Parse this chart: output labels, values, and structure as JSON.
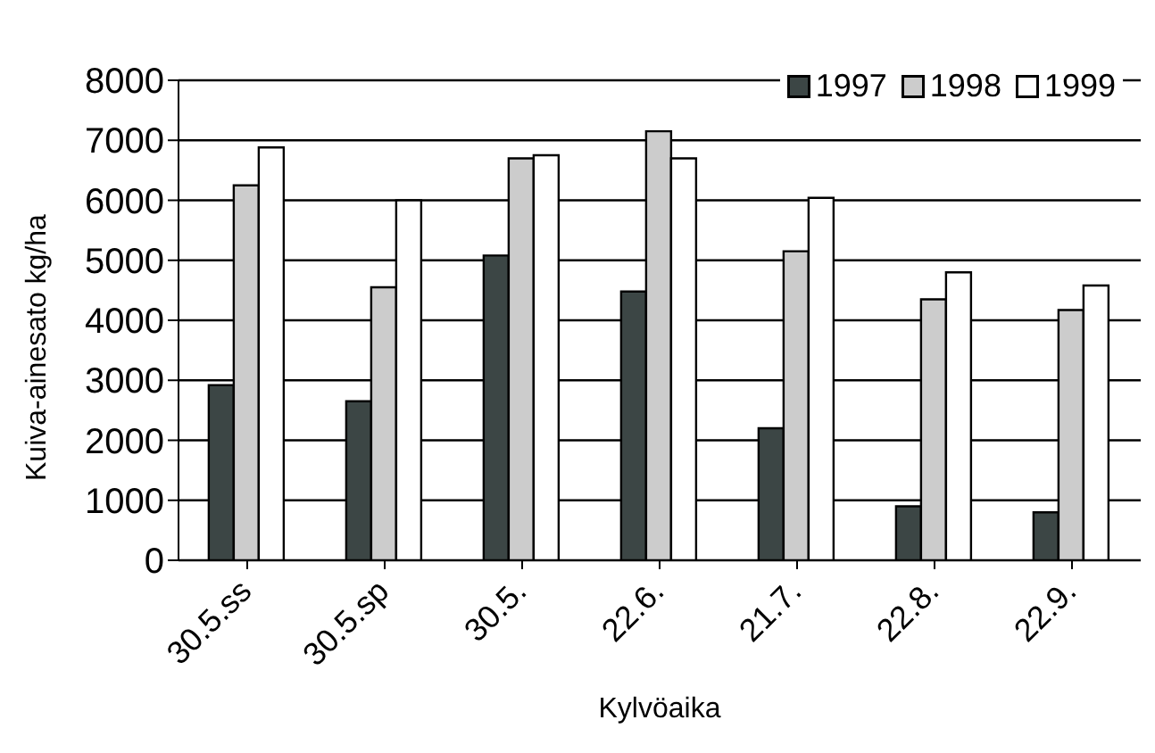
{
  "chart_data": {
    "type": "bar",
    "xlabel": "Kylvöaika",
    "ylabel": "Kuiva-ainesato kg/ha",
    "categories": [
      "30.5.ss",
      "30.5.sp",
      "30.5.",
      "22.6.",
      "21.7.",
      "22.8.",
      "22.9."
    ],
    "series": [
      {
        "name": "1997",
        "color": "#3c4645",
        "values": [
          2920,
          2650,
          5080,
          4480,
          2200,
          900,
          800
        ]
      },
      {
        "name": "1998",
        "color": "#cccccc",
        "values": [
          6250,
          4550,
          6700,
          7150,
          5150,
          4350,
          4170
        ]
      },
      {
        "name": "1999",
        "color": "#ffffff",
        "values": [
          6880,
          6000,
          6750,
          6700,
          6040,
          4800,
          4580
        ]
      }
    ],
    "ylim": [
      0,
      8000
    ],
    "yticks": [
      0,
      1000,
      2000,
      3000,
      4000,
      5000,
      6000,
      7000,
      8000
    ],
    "grid": "y",
    "legend": "top right"
  }
}
